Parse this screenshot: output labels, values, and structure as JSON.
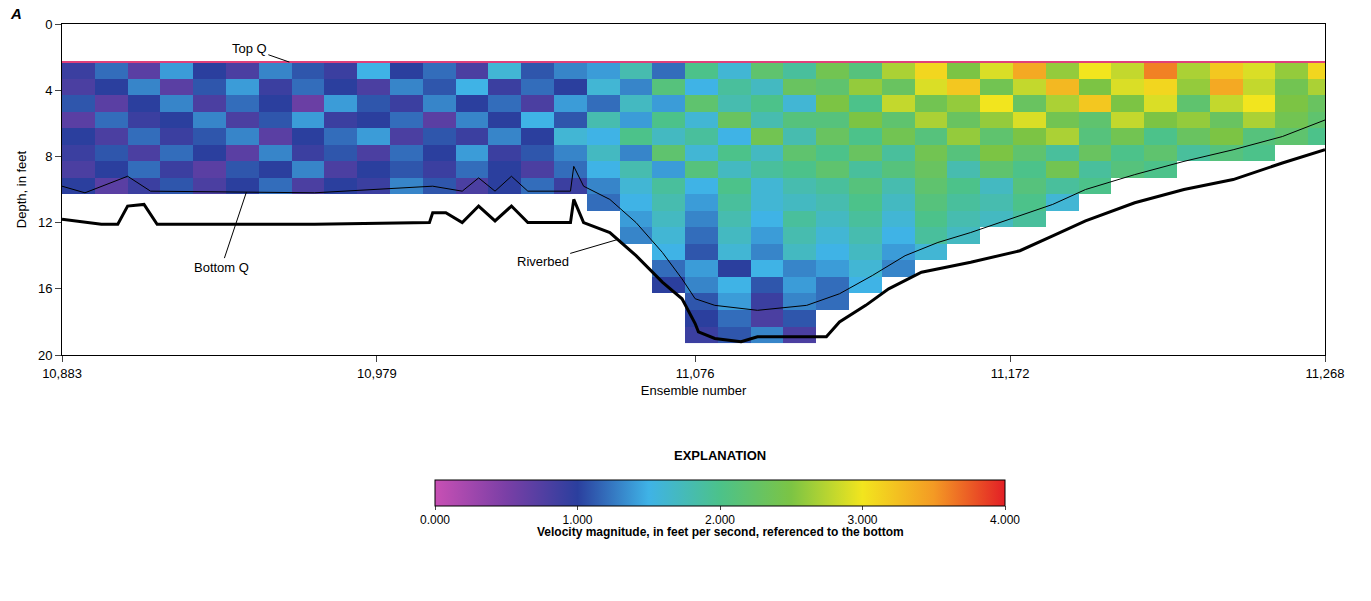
{
  "chart_data": {
    "type": "heatmap",
    "panel": "A",
    "x_label": "Ensemble number",
    "y_label": "Depth, in feet",
    "grid": false,
    "xlim": [
      10883,
      11268
    ],
    "xticks": [
      {
        "value": 10883,
        "label": "10,883"
      },
      {
        "value": 10979,
        "label": "10,979"
      },
      {
        "value": 11076,
        "label": "11,076"
      },
      {
        "value": 11172,
        "label": "11,172"
      },
      {
        "value": 11268,
        "label": "11,268"
      }
    ],
    "ylim": [
      20,
      0
    ],
    "yticks": [
      0,
      4,
      8,
      12,
      16,
      20
    ],
    "x": [
      10888,
      10898,
      10908,
      10918,
      10928,
      10938,
      10948,
      10958,
      10968,
      10978,
      10988,
      10998,
      11008,
      11018,
      11028,
      11038,
      11048,
      11058,
      11068,
      11078,
      11088,
      11098,
      11108,
      11118,
      11128,
      11138,
      11148,
      11158,
      11168,
      11178,
      11188,
      11198,
      11208,
      11218,
      11228,
      11238,
      11248,
      11258,
      11268
    ],
    "y": [
      2.8,
      3.8,
      4.8,
      5.8,
      6.8,
      7.8,
      8.8,
      9.8,
      10.8,
      11.8,
      12.8,
      13.8,
      14.8,
      15.8,
      16.8,
      17.8,
      18.8
    ],
    "z": [
      [
        0.9,
        1.2,
        0.7,
        1.4,
        1.0,
        0.8,
        1.3,
        1.1,
        0.9,
        1.5,
        1.0,
        1.2,
        0.8,
        1.6,
        1.1,
        1.3,
        1.4,
        1.8,
        1.2,
        2.0,
        1.6,
        2.2,
        1.9,
        2.4,
        2.1,
        2.7,
        3.1,
        2.5,
        2.9,
        3.4,
        2.6,
        3.0,
        2.8,
        3.6,
        2.7,
        3.2,
        2.9,
        2.6,
        3.1
      ],
      [
        0.8,
        1.0,
        1.3,
        0.7,
        1.1,
        1.4,
        0.9,
        1.2,
        1.0,
        0.8,
        1.3,
        1.1,
        1.5,
        0.9,
        1.2,
        1.0,
        1.6,
        1.3,
        2.1,
        1.5,
        1.9,
        1.7,
        2.3,
        2.2,
        2.6,
        2.3,
        2.9,
        3.2,
        2.4,
        2.8,
        3.3,
        2.5,
        2.9,
        3.1,
        2.6,
        3.4,
        2.8,
        2.4,
        2.7
      ],
      [
        1.1,
        0.7,
        1.0,
        1.3,
        0.8,
        1.2,
        1.0,
        0.6,
        1.4,
        1.1,
        0.9,
        1.3,
        1.0,
        1.2,
        0.8,
        1.4,
        1.2,
        1.7,
        1.4,
        2.2,
        1.8,
        2.0,
        1.6,
        2.5,
        2.0,
        2.8,
        2.4,
        2.6,
        3.0,
        2.3,
        2.7,
        3.2,
        2.5,
        2.9,
        2.2,
        2.8,
        3.0,
        2.5,
        2.3
      ],
      [
        0.7,
        1.2,
        0.9,
        1.0,
        1.3,
        0.8,
        1.1,
        1.4,
        0.9,
        1.0,
        1.2,
        0.7,
        1.3,
        1.0,
        1.5,
        1.1,
        1.8,
        1.4,
        2.0,
        1.6,
        2.3,
        1.8,
        2.1,
        2.1,
        2.5,
        2.2,
        2.7,
        2.3,
        2.6,
        2.9,
        2.4,
        2.2,
        2.8,
        2.5,
        2.6,
        2.3,
        2.7,
        2.4,
        2.2
      ],
      [
        1.0,
        0.8,
        1.2,
        0.9,
        1.1,
        1.3,
        0.7,
        1.0,
        1.2,
        1.4,
        0.8,
        1.1,
        0.9,
        1.3,
        1.0,
        1.6,
        1.5,
        2.0,
        1.7,
        1.9,
        1.5,
        2.4,
        1.8,
        2.3,
        2.0,
        2.4,
        2.1,
        2.6,
        2.2,
        2.5,
        2.7,
        2.1,
        2.4,
        2.0,
        2.3,
        2.5,
        2.1,
        2.2,
        2.0
      ],
      [
        0.9,
        1.1,
        0.8,
        1.2,
        1.0,
        0.7,
        1.3,
        0.9,
        1.1,
        0.8,
        1.2,
        1.0,
        1.4,
        0.9,
        1.1,
        1.3,
        1.7,
        1.3,
        2.2,
        1.6,
        2.0,
        1.7,
        2.2,
        2.0,
        2.3,
        1.9,
        2.4,
        2.1,
        2.5,
        2.2,
        1.9,
        2.3,
        2.0,
        2.2,
        1.9,
        2.1,
        2.0,
        null,
        null
      ],
      [
        0.8,
        1.0,
        1.2,
        0.9,
        0.7,
        1.1,
        1.0,
        1.3,
        0.8,
        1.0,
        1.1,
        0.9,
        1.2,
        1.0,
        0.8,
        1.2,
        1.5,
        1.8,
        1.4,
        2.1,
        1.7,
        1.9,
        2.0,
        2.2,
        1.9,
        2.1,
        2.3,
        1.8,
        2.2,
        2.0,
        2.4,
        1.9,
        2.1,
        2.0,
        null,
        null,
        null,
        null,
        null
      ],
      [
        1.0,
        0.7,
        0.9,
        1.1,
        0.8,
        1.0,
        1.2,
        0.8,
        1.0,
        0.9,
        1.3,
        1.1,
        0.8,
        1.0,
        1.2,
        0.9,
        1.3,
        1.6,
        1.9,
        1.5,
        2.0,
        1.6,
        1.8,
        1.9,
        2.1,
        1.8,
        2.2,
        2.0,
        1.7,
        2.1,
        1.9,
        2.0,
        null,
        null,
        null,
        null,
        null,
        null,
        null
      ],
      [
        null,
        null,
        null,
        null,
        null,
        null,
        null,
        null,
        null,
        null,
        null,
        null,
        null,
        null,
        null,
        null,
        1.2,
        1.5,
        1.8,
        1.4,
        1.9,
        1.6,
        1.7,
        1.8,
        2.0,
        1.7,
        2.1,
        1.9,
        1.8,
        2.0,
        1.6,
        null,
        null,
        null,
        null,
        null,
        null,
        null,
        null
      ],
      [
        null,
        null,
        null,
        null,
        null,
        null,
        null,
        null,
        null,
        null,
        null,
        null,
        null,
        null,
        null,
        null,
        null,
        1.4,
        1.7,
        1.3,
        1.8,
        1.5,
        1.9,
        1.7,
        1.9,
        1.6,
        2.0,
        1.8,
        1.7,
        1.9,
        null,
        null,
        null,
        null,
        null,
        null,
        null,
        null,
        null
      ],
      [
        null,
        null,
        null,
        null,
        null,
        null,
        null,
        null,
        null,
        null,
        null,
        null,
        null,
        null,
        null,
        null,
        null,
        1.3,
        1.6,
        1.2,
        1.7,
        1.4,
        1.8,
        1.6,
        1.8,
        1.5,
        1.9,
        1.7,
        null,
        null,
        null,
        null,
        null,
        null,
        null,
        null,
        null,
        null,
        null
      ],
      [
        null,
        null,
        null,
        null,
        null,
        null,
        null,
        null,
        null,
        null,
        null,
        null,
        null,
        null,
        null,
        null,
        null,
        null,
        1.5,
        1.1,
        1.6,
        1.3,
        1.7,
        1.5,
        1.7,
        1.4,
        1.6,
        null,
        null,
        null,
        null,
        null,
        null,
        null,
        null,
        null,
        null,
        null,
        null
      ],
      [
        null,
        null,
        null,
        null,
        null,
        null,
        null,
        null,
        null,
        null,
        null,
        null,
        null,
        null,
        null,
        null,
        null,
        null,
        1.2,
        1.4,
        1.0,
        1.5,
        1.3,
        1.4,
        1.6,
        1.3,
        null,
        null,
        null,
        null,
        null,
        null,
        null,
        null,
        null,
        null,
        null,
        null,
        null
      ],
      [
        null,
        null,
        null,
        null,
        null,
        null,
        null,
        null,
        null,
        null,
        null,
        null,
        null,
        null,
        null,
        null,
        null,
        null,
        1.0,
        1.3,
        1.5,
        1.1,
        1.4,
        1.2,
        1.5,
        null,
        null,
        null,
        null,
        null,
        null,
        null,
        null,
        null,
        null,
        null,
        null,
        null,
        null
      ],
      [
        null,
        null,
        null,
        null,
        null,
        null,
        null,
        null,
        null,
        null,
        null,
        null,
        null,
        null,
        null,
        null,
        null,
        null,
        null,
        1.1,
        1.4,
        0.9,
        1.3,
        1.2,
        null,
        null,
        null,
        null,
        null,
        null,
        null,
        null,
        null,
        null,
        null,
        null,
        null,
        null,
        null
      ],
      [
        null,
        null,
        null,
        null,
        null,
        null,
        null,
        null,
        null,
        null,
        null,
        null,
        null,
        null,
        null,
        null,
        null,
        null,
        null,
        1.0,
        1.2,
        0.8,
        1.1,
        null,
        null,
        null,
        null,
        null,
        null,
        null,
        null,
        null,
        null,
        null,
        null,
        null,
        null,
        null,
        null
      ],
      [
        null,
        null,
        null,
        null,
        null,
        null,
        null,
        null,
        null,
        null,
        null,
        null,
        null,
        null,
        null,
        null,
        null,
        null,
        null,
        0.9,
        1.1,
        1.3,
        0.8,
        null,
        null,
        null,
        null,
        null,
        null,
        null,
        null,
        null,
        null,
        null,
        null,
        null,
        null,
        null,
        null
      ]
    ],
    "colorbar": {
      "heading": "EXPLANATION",
      "title": "Velocity magnitude, in feet per second, referenced to the bottom",
      "range": [
        0,
        4
      ],
      "ticks": [
        {
          "value": 0,
          "label": "0.000"
        },
        {
          "value": 1,
          "label": "1.000"
        },
        {
          "value": 2,
          "label": "2.000"
        },
        {
          "value": 3,
          "label": "3.000"
        },
        {
          "value": 4,
          "label": "4.000"
        }
      ]
    },
    "series": [
      {
        "name": "Top Q",
        "color": "#e0407a",
        "line_style": "solid",
        "x": [
          10883,
          11268
        ],
        "values": [
          2.3,
          2.3
        ]
      },
      {
        "name": "Bottom Q",
        "color": "#000000",
        "line_style": "thin",
        "x": [
          10883,
          10890,
          10903,
          10910,
          10960,
          10996,
          11005,
          11010,
          11015,
          11020,
          11025,
          11038,
          11039,
          11042,
          11050,
          11058,
          11066,
          11072,
          11076,
          11082,
          11095,
          11110,
          11120,
          11130,
          11140,
          11150,
          11160,
          11175,
          11185,
          11195,
          11210,
          11225,
          11240,
          11255,
          11268
        ],
        "values": [
          9.8,
          10.2,
          9.2,
          10.1,
          10.2,
          9.8,
          10.1,
          9.3,
          10.1,
          9.2,
          10.1,
          10.1,
          8.6,
          9.8,
          10.6,
          12.0,
          13.8,
          15.4,
          16.6,
          17.0,
          17.3,
          17.0,
          16.3,
          15.2,
          14.0,
          13.2,
          12.6,
          11.6,
          10.9,
          10.0,
          9.1,
          8.3,
          7.6,
          6.8,
          5.8
        ]
      },
      {
        "name": "Riverbed",
        "color": "#000000",
        "line_style": "thick",
        "x": [
          10883,
          10895,
          10900,
          10903,
          10908,
          10910,
          10912,
          10960,
          10995,
          10996,
          11000,
          11005,
          11010,
          11015,
          11020,
          11025,
          11038,
          11039,
          11042,
          11050,
          11058,
          11066,
          11072,
          11076,
          11077,
          11082,
          11090,
          11095,
          11110,
          11116,
          11120,
          11128,
          11135,
          11145,
          11160,
          11175,
          11185,
          11195,
          11210,
          11225,
          11240,
          11255,
          11268
        ],
        "values": [
          11.8,
          12.1,
          12.1,
          11.0,
          10.9,
          11.5,
          12.1,
          12.1,
          12.0,
          11.4,
          11.4,
          12.0,
          11.0,
          11.9,
          11.0,
          12.0,
          12.0,
          10.6,
          12.0,
          12.6,
          14.0,
          15.6,
          16.6,
          18.1,
          18.6,
          19.0,
          19.2,
          18.9,
          18.9,
          18.9,
          18.0,
          17.0,
          16.0,
          15.0,
          14.4,
          13.7,
          12.8,
          11.9,
          10.8,
          10.0,
          9.4,
          8.4,
          7.6
        ]
      }
    ]
  }
}
